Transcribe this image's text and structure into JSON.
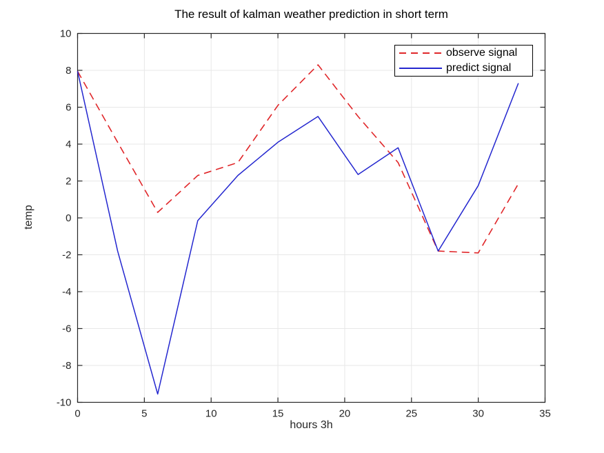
{
  "figure": {
    "title": "The result of kalman weather prediction in short term",
    "xlabel": "hours 3h",
    "ylabel": "temp"
  },
  "legend": {
    "position": "top-right",
    "items": [
      {
        "label": "observe signal",
        "style": "dashed",
        "color": "#e02629"
      },
      {
        "label": "predict signal",
        "style": "solid",
        "color": "#2326cf"
      }
    ]
  },
  "chart_data": {
    "type": "line",
    "title": "The result of kalman weather prediction in short term",
    "xlabel": "hours 3h",
    "ylabel": "temp",
    "xlim": [
      0,
      35
    ],
    "ylim": [
      -10,
      10
    ],
    "x_ticks": [
      0,
      5,
      10,
      15,
      20,
      25,
      30,
      35
    ],
    "y_ticks": [
      -10,
      -8,
      -6,
      -4,
      -2,
      0,
      2,
      4,
      6,
      8,
      10
    ],
    "grid": true,
    "grid_color": "#e7e7e7",
    "axis_color": "#262626",
    "x": [
      0,
      3,
      6,
      9,
      12,
      15,
      18,
      21,
      24,
      27,
      30,
      33
    ],
    "series": [
      {
        "name": "observe signal",
        "color": "#e02629",
        "line_style": "dashed",
        "values": [
          7.95,
          4.1,
          0.3,
          2.3,
          3.0,
          6.1,
          8.3,
          5.5,
          3.0,
          -1.8,
          -1.9,
          1.85
        ]
      },
      {
        "name": "predict signal",
        "color": "#2326cf",
        "line_style": "solid",
        "values": [
          7.95,
          -1.8,
          -9.55,
          -0.15,
          2.3,
          4.1,
          5.5,
          2.35,
          3.8,
          -1.8,
          1.75,
          7.3
        ]
      }
    ]
  }
}
